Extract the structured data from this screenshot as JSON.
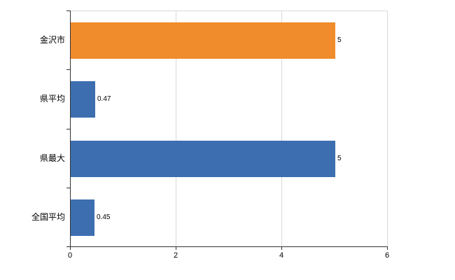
{
  "chart_data": {
    "type": "bar",
    "orientation": "horizontal",
    "title": "",
    "xlabel": "",
    "ylabel": "",
    "categories": [
      "金沢市",
      "県平均",
      "県最大",
      "全国平均"
    ],
    "values": [
      5,
      0.47,
      5,
      0.45
    ],
    "value_labels": [
      "5",
      "0.47",
      "5",
      "0.45"
    ],
    "bar_colors": [
      "#f08c2b",
      "#3d6eb0",
      "#3d6eb0",
      "#3d6eb0"
    ],
    "xlim": [
      0,
      6
    ],
    "x_ticks": [
      "0",
      "2",
      "4",
      "6"
    ],
    "x_tick_values": [
      0,
      2,
      4,
      6
    ],
    "grid": "on",
    "legend": "none",
    "colors": {
      "axis": "#333333",
      "gridline": "#d9d9d9",
      "plot_border": "#d9d9d9",
      "background": "#ffffff",
      "text": "#000000"
    }
  }
}
